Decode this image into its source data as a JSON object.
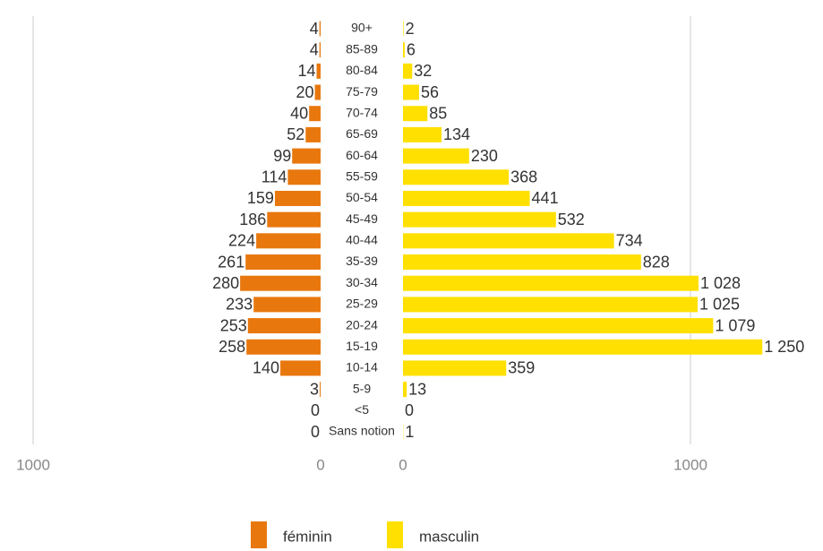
{
  "chart_data": {
    "type": "pyramid",
    "categories": [
      "90+",
      "85-89",
      "80-84",
      "75-79",
      "70-74",
      "65-69",
      "60-64",
      "55-59",
      "50-54",
      "45-49",
      "40-44",
      "35-39",
      "30-34",
      "25-29",
      "20-24",
      "15-19",
      "10-14",
      "5-9",
      "<5",
      "Sans notion"
    ],
    "series": [
      {
        "name": "féminin",
        "color": "#e8780e",
        "side": "left",
        "values": [
          4,
          4,
          14,
          20,
          40,
          52,
          99,
          114,
          159,
          186,
          224,
          261,
          280,
          233,
          253,
          258,
          140,
          3,
          0,
          0
        ]
      },
      {
        "name": "masculin",
        "color": "#ffe000",
        "side": "right",
        "values": [
          2,
          6,
          32,
          56,
          85,
          134,
          230,
          368,
          441,
          532,
          734,
          828,
          1028,
          1025,
          1079,
          1250,
          359,
          13,
          0,
          1
        ],
        "value_labels": [
          "2",
          "6",
          "32",
          "56",
          "85",
          "134",
          "230",
          "368",
          "441",
          "532",
          "734",
          "828",
          "1 028",
          "1 025",
          "1 079",
          "1 250",
          "359",
          "13",
          "0",
          "1"
        ]
      }
    ],
    "xlim": [
      0,
      1000
    ],
    "xticks": [
      0,
      1000
    ],
    "grid": true
  }
}
